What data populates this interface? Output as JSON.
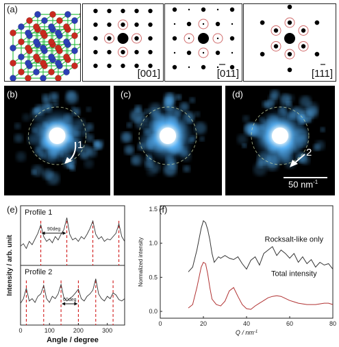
{
  "panel_labels": {
    "a": "(a)",
    "b": "(b)",
    "c": "(c)",
    "d": "(d)",
    "e": "(e)",
    "f": "(f)"
  },
  "zone_axes": {
    "z001": "[001]",
    "z011": "[011]",
    "z111": "[111]"
  },
  "images": {
    "arrow1": "1",
    "arrow2": "2",
    "scalebar": "50 nm",
    "scalebar_sup": "-1"
  },
  "colors": {
    "atom_red": "#c8291f",
    "atom_blue": "#2c3fb5",
    "bond": "#33c24a",
    "glow": "#5ab8ff",
    "profile": "#333333",
    "total": "#b03030",
    "dash": "#d11a1a"
  },
  "chart_data": [
    {
      "type": "line",
      "panel": "e",
      "xlabel": "Angle / degree",
      "ylabel": "Intensity / arb. unit",
      "xlim": [
        0,
        360
      ],
      "xticks": [
        "0",
        "100",
        "200",
        "300"
      ],
      "subplots": [
        {
          "title": "Profile 1",
          "annotation": "90deg",
          "marker_angles": [
            70,
            160,
            250,
            340
          ],
          "x": [
            0,
            10,
            20,
            30,
            40,
            50,
            60,
            70,
            80,
            90,
            100,
            110,
            120,
            130,
            140,
            150,
            160,
            170,
            180,
            190,
            200,
            210,
            220,
            230,
            240,
            250,
            260,
            270,
            280,
            290,
            300,
            310,
            320,
            330,
            340,
            350,
            360
          ],
          "y": [
            0.35,
            0.4,
            0.3,
            0.45,
            0.38,
            0.5,
            0.62,
            0.8,
            0.55,
            0.45,
            0.5,
            0.42,
            0.55,
            0.48,
            0.6,
            0.7,
            0.95,
            0.6,
            0.48,
            0.52,
            0.45,
            0.55,
            0.5,
            0.6,
            0.72,
            0.88,
            0.6,
            0.5,
            0.55,
            0.45,
            0.5,
            0.48,
            0.55,
            0.62,
            0.82,
            0.55,
            0.45
          ]
        },
        {
          "title": "Profile 2",
          "annotation": "60deg",
          "marker_angles": [
            20,
            80,
            140,
            200,
            260,
            320
          ],
          "x": [
            0,
            10,
            20,
            30,
            40,
            50,
            60,
            70,
            80,
            90,
            100,
            110,
            120,
            130,
            140,
            150,
            160,
            170,
            180,
            190,
            200,
            210,
            220,
            230,
            240,
            250,
            260,
            270,
            280,
            290,
            300,
            310,
            320,
            330,
            340,
            350,
            360
          ],
          "y": [
            0.4,
            0.5,
            0.72,
            0.45,
            0.5,
            0.42,
            0.55,
            0.6,
            0.78,
            0.5,
            0.42,
            0.55,
            0.5,
            0.6,
            0.8,
            0.52,
            0.45,
            0.5,
            0.55,
            0.62,
            0.7,
            0.5,
            0.45,
            0.55,
            0.6,
            0.68,
            0.92,
            0.6,
            0.5,
            0.45,
            0.55,
            0.5,
            0.62,
            0.58,
            0.48,
            0.45,
            0.5
          ]
        }
      ]
    },
    {
      "type": "line",
      "panel": "f",
      "xlabel": "Q / nm",
      "xlabel_sup": "-1",
      "ylabel": "Normalized intensity",
      "xlim": [
        0,
        80
      ],
      "ylim": [
        -0.1,
        1.55
      ],
      "xticks": [
        0,
        20,
        40,
        60,
        80
      ],
      "yticks": [
        "0.0",
        "0.5",
        "1.0",
        "1.5"
      ],
      "series": [
        {
          "name": "Rocksalt-like only",
          "x": [
            13,
            15,
            17,
            19,
            20,
            21,
            22,
            23,
            24,
            25,
            26,
            27,
            28,
            30,
            32,
            34,
            36,
            38,
            40,
            42,
            44,
            46,
            48,
            50,
            52,
            54,
            56,
            58,
            60,
            62,
            64,
            66,
            68,
            70,
            72,
            74,
            76,
            78,
            80
          ],
          "y": [
            0.58,
            0.65,
            0.9,
            1.22,
            1.33,
            1.3,
            1.2,
            1.05,
            0.85,
            0.72,
            0.76,
            0.8,
            0.78,
            0.82,
            0.78,
            0.76,
            0.8,
            0.7,
            0.62,
            0.75,
            0.8,
            0.68,
            0.85,
            0.9,
            0.95,
            0.82,
            0.9,
            0.85,
            0.78,
            0.85,
            0.72,
            0.8,
            0.7,
            0.76,
            0.65,
            0.72,
            0.68,
            0.7,
            0.62
          ]
        },
        {
          "name": "Total intensity",
          "x": [
            13,
            15,
            17,
            19,
            20,
            21,
            22,
            23,
            24,
            26,
            28,
            30,
            32,
            34,
            36,
            38,
            40,
            42,
            44,
            46,
            48,
            50,
            52,
            54,
            56,
            58,
            60,
            62,
            64,
            66,
            68,
            70,
            72,
            74,
            76,
            78,
            80
          ],
          "y": [
            0.05,
            0.1,
            0.35,
            0.65,
            0.72,
            0.7,
            0.55,
            0.35,
            0.18,
            0.1,
            0.08,
            0.15,
            0.3,
            0.35,
            0.22,
            0.1,
            0.04,
            0.03,
            0.08,
            0.12,
            0.16,
            0.2,
            0.22,
            0.23,
            0.22,
            0.19,
            0.16,
            0.14,
            0.12,
            0.11,
            0.1,
            0.1,
            0.1,
            0.11,
            0.12,
            0.12,
            0.1
          ]
        }
      ]
    }
  ]
}
